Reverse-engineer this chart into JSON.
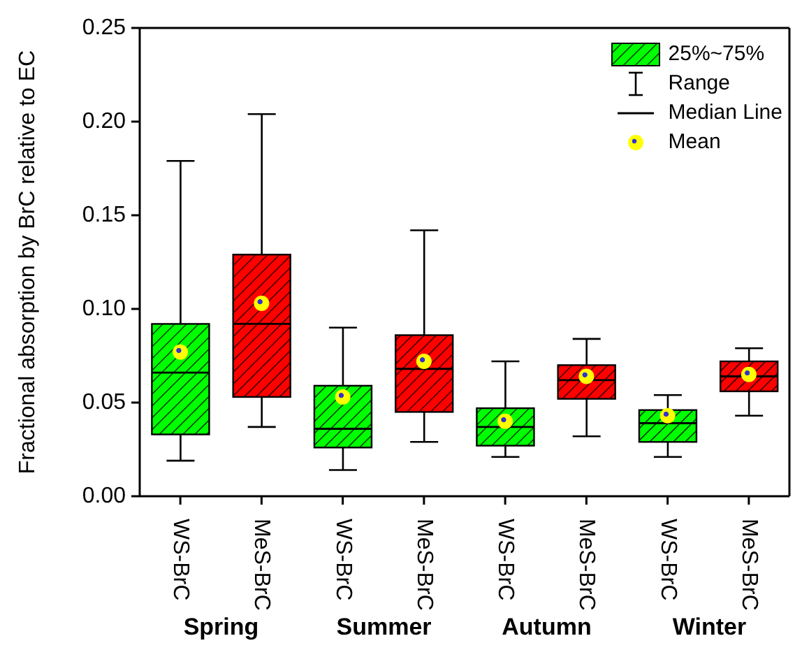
{
  "chart_data": {
    "type": "box",
    "ylabel": "Fractional absorption by BrC relative to EC",
    "categories": [
      "WS-BrC",
      "MeS-BrC",
      "WS-BrC",
      "MeS-BrC",
      "WS-BrC",
      "MeS-BrC",
      "WS-BrC",
      "MeS-BrC"
    ],
    "colors": [
      "#00ff00",
      "#ff0000",
      "#00ff00",
      "#ff0000",
      "#00ff00",
      "#ff0000",
      "#00ff00",
      "#ff0000"
    ],
    "boxes": [
      {
        "low": 0.019,
        "q1": 0.033,
        "median": 0.066,
        "q3": 0.092,
        "high": 0.179,
        "mean": 0.077
      },
      {
        "low": 0.037,
        "q1": 0.053,
        "median": 0.092,
        "q3": 0.129,
        "high": 0.204,
        "mean": 0.103
      },
      {
        "low": 0.014,
        "q1": 0.026,
        "median": 0.036,
        "q3": 0.059,
        "high": 0.09,
        "mean": 0.053
      },
      {
        "low": 0.029,
        "q1": 0.045,
        "median": 0.068,
        "q3": 0.086,
        "high": 0.142,
        "mean": 0.072
      },
      {
        "low": 0.021,
        "q1": 0.027,
        "median": 0.037,
        "q3": 0.047,
        "high": 0.072,
        "mean": 0.04
      },
      {
        "low": 0.032,
        "q1": 0.052,
        "median": 0.062,
        "q3": 0.07,
        "high": 0.084,
        "mean": 0.064
      },
      {
        "low": 0.021,
        "q1": 0.029,
        "median": 0.039,
        "q3": 0.046,
        "high": 0.054,
        "mean": 0.043
      },
      {
        "low": 0.043,
        "q1": 0.056,
        "median": 0.064,
        "q3": 0.072,
        "high": 0.079,
        "mean": 0.065
      }
    ],
    "ylim": [
      0,
      0.25
    ],
    "yticks": [
      {
        "value": 0,
        "label": "0.00"
      },
      0.05,
      {
        "value": 0.1,
        "label": "0.10"
      },
      0.15,
      {
        "value": 0.2,
        "label": "0.20"
      },
      0.25
    ],
    "annotations": [
      "25%~75%",
      "Range",
      "Median Line",
      "Mean",
      "Spring",
      "Summer",
      "Autumn",
      "Winter"
    ]
  }
}
